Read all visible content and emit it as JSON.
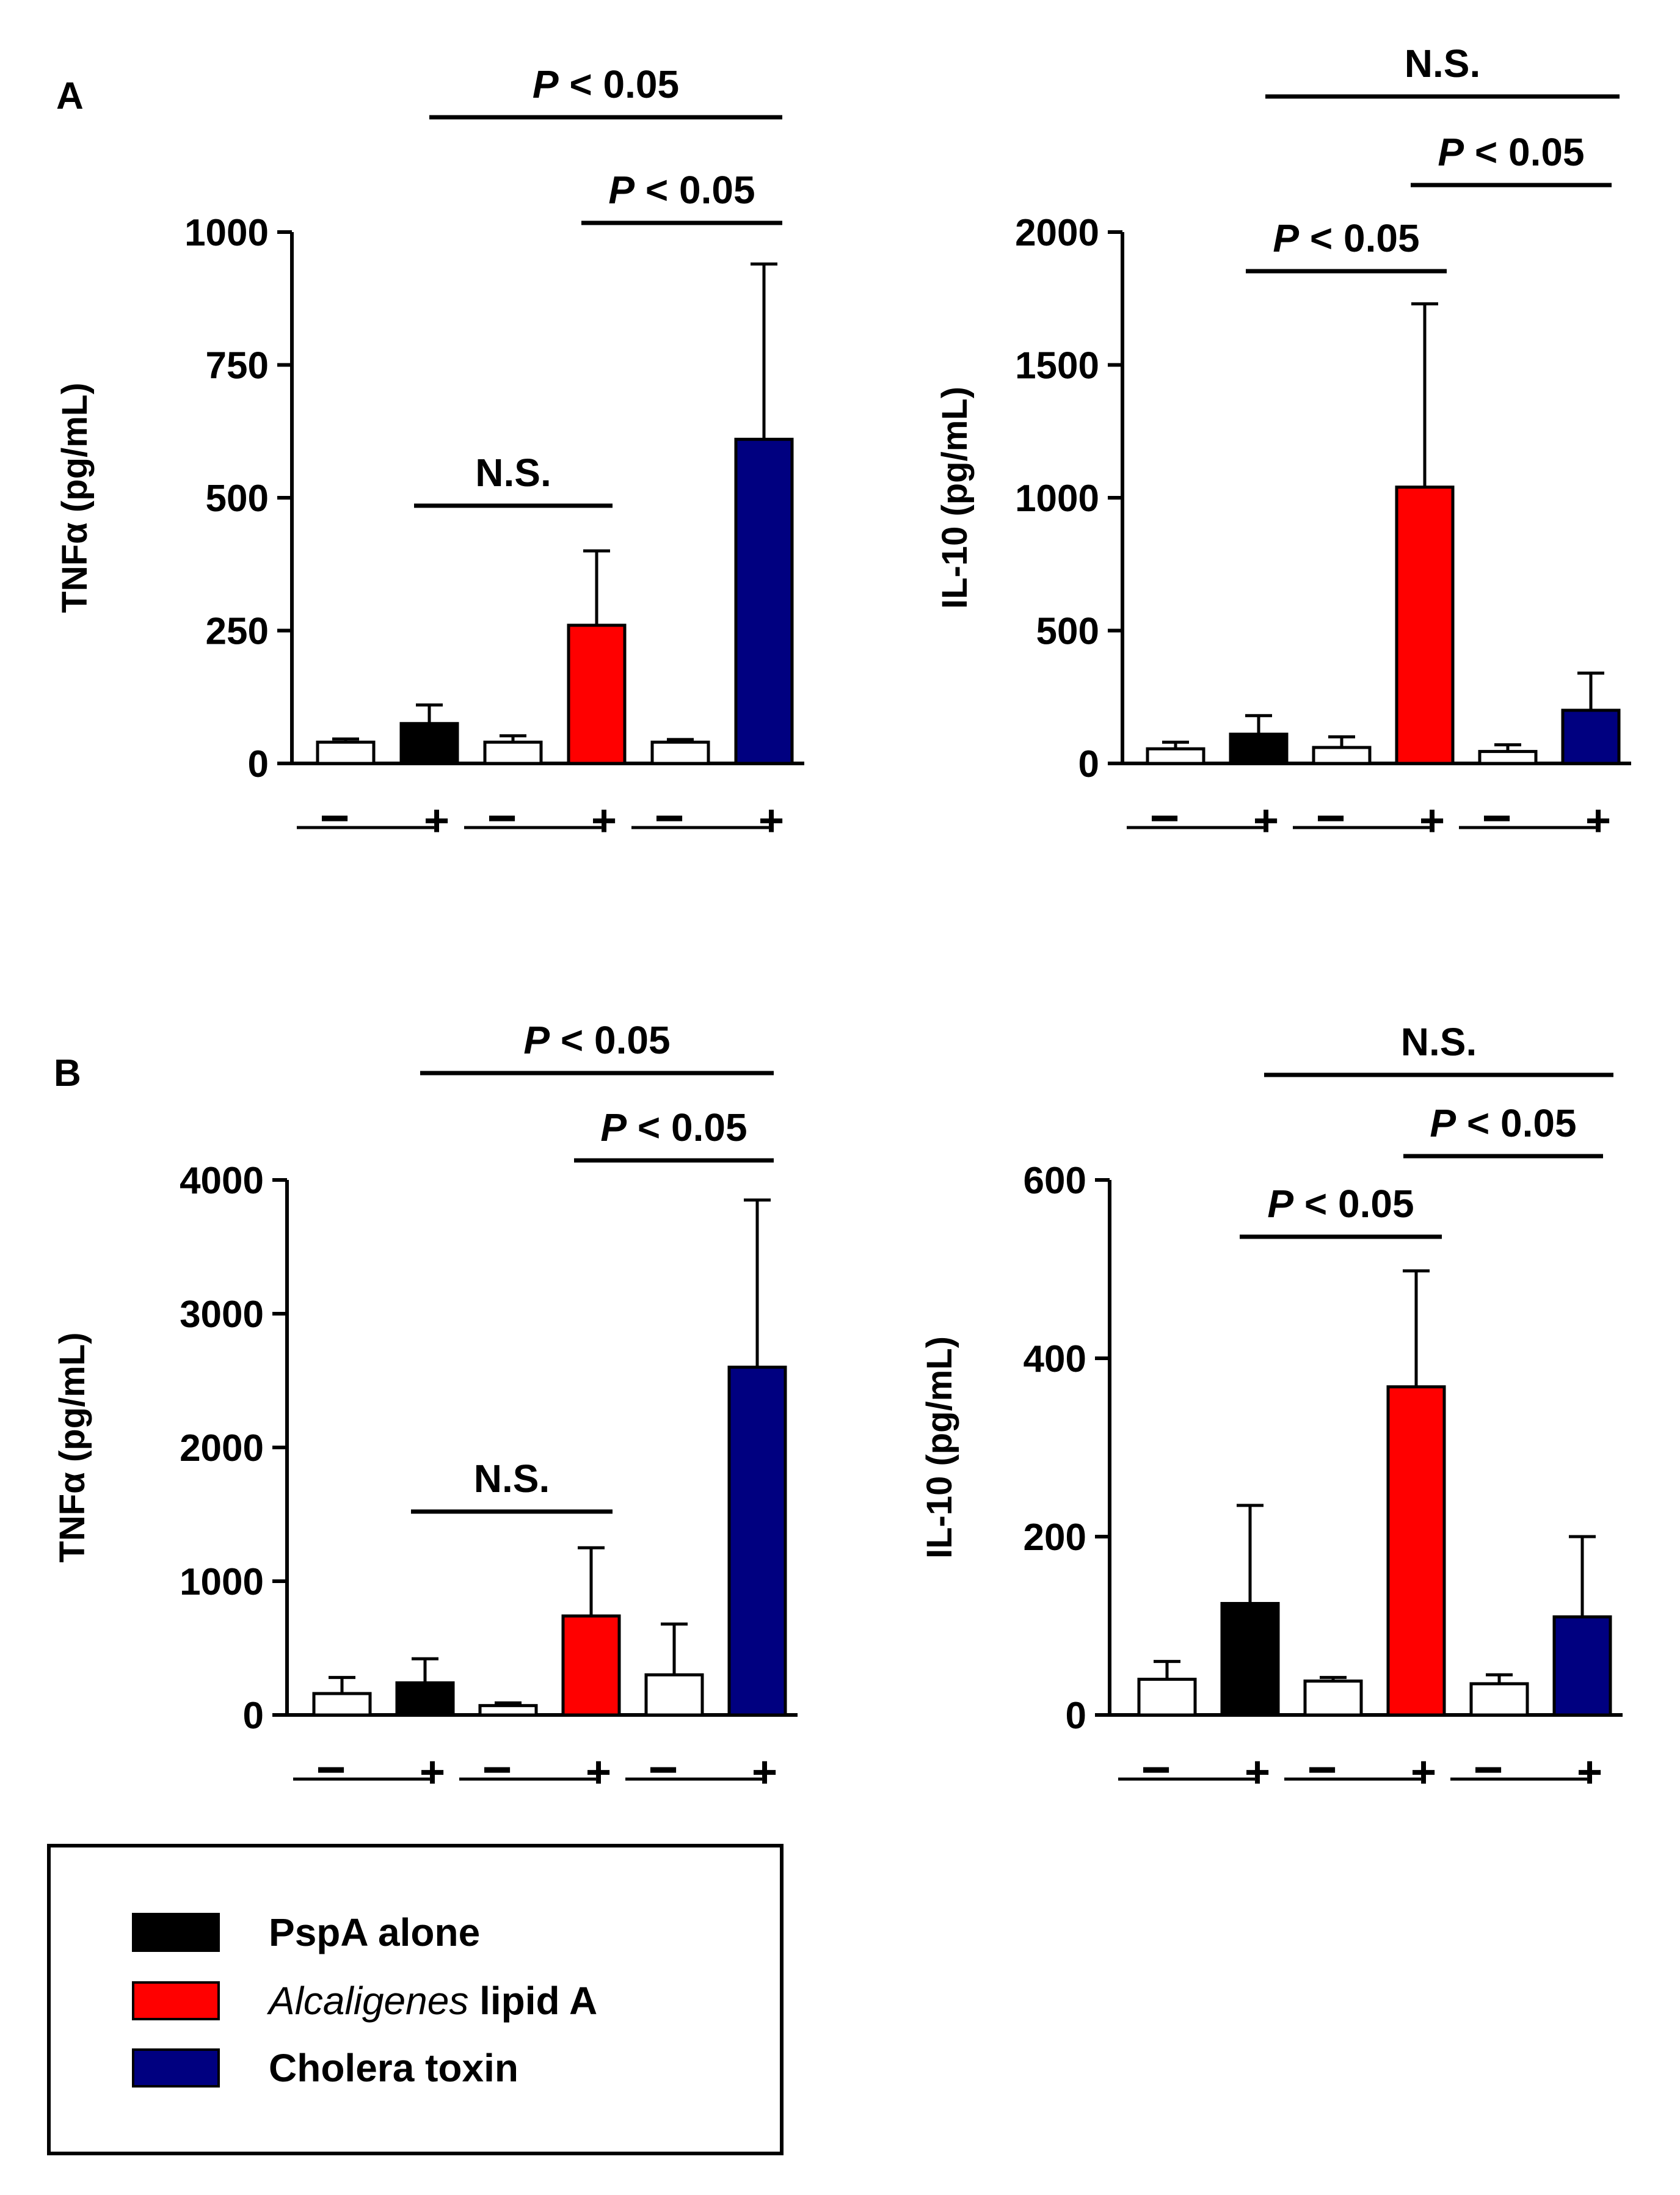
{
  "panels": {
    "A": {
      "label": "A"
    },
    "B": {
      "label": "B"
    }
  },
  "legend": {
    "items": [
      {
        "name": "PspA",
        "rest": "  alone",
        "italic": false,
        "color": "#000000"
      },
      {
        "name": "Alcaligenes",
        "rest": " lipid A",
        "italic": true,
        "color": "#ff0000"
      },
      {
        "name": "Cholera toxin",
        "rest": "",
        "italic": false,
        "color": "#000080"
      }
    ]
  },
  "colors": {
    "control": "#ffffff",
    "pspa_alone": "#000000",
    "alcaligenes": "#ff0000",
    "cholera": "#000080"
  },
  "chart_data": [
    {
      "id": "A-TNF",
      "panel": "A",
      "type": "bar",
      "ylabel": "TNFα (pg/mL)",
      "ylim": [
        0,
        1000
      ],
      "yticks": [
        0,
        250,
        500,
        750,
        1000
      ],
      "tick_labels": [
        "0",
        "250",
        "500",
        "750",
        "1000"
      ],
      "categories": [
        "−",
        "+",
        "−",
        "+",
        "−",
        "+"
      ],
      "values": [
        40,
        75,
        40,
        260,
        40,
        610
      ],
      "errors": [
        6,
        35,
        12,
        140,
        5,
        330
      ],
      "bar_colors": [
        "#ffffff",
        "#000000",
        "#ffffff",
        "#ff0000",
        "#ffffff",
        "#000080"
      ],
      "annotations": [
        {
          "text": "N.S.",
          "from": 1,
          "to": 3
        },
        {
          "text": "< 0.05",
          "p": true,
          "from": 3,
          "to": 5
        },
        {
          "text": "< 0.05",
          "p": true,
          "from": 1,
          "to": 5
        }
      ]
    },
    {
      "id": "A-IL10",
      "panel": "A",
      "type": "bar",
      "ylabel": "IL-10 (pg/mL)",
      "ylim": [
        0,
        2000
      ],
      "yticks": [
        0,
        500,
        1000,
        1500,
        2000
      ],
      "tick_labels": [
        "0",
        "500",
        "1000",
        "1500",
        "2000"
      ],
      "categories": [
        "−",
        "+",
        "−",
        "+",
        "−",
        "+"
      ],
      "values": [
        55,
        110,
        60,
        1040,
        45,
        200
      ],
      "errors": [
        25,
        70,
        40,
        690,
        25,
        140
      ],
      "bar_colors": [
        "#ffffff",
        "#000000",
        "#ffffff",
        "#ff0000",
        "#ffffff",
        "#000080"
      ],
      "annotations": [
        {
          "text": "< 0.05",
          "p": true,
          "from": 1,
          "to": 3
        },
        {
          "text": "< 0.05",
          "p": true,
          "from": 3,
          "to": 5
        },
        {
          "text": "N.S.",
          "from": 1,
          "to": 5
        }
      ]
    },
    {
      "id": "B-TNF",
      "panel": "B",
      "type": "bar",
      "ylabel": "TNFα (pg/mL)",
      "ylim": [
        0,
        4000
      ],
      "yticks": [
        0,
        1000,
        2000,
        3000,
        4000
      ],
      "tick_labels": [
        "0",
        "1000",
        "2000",
        "3000",
        "4000"
      ],
      "categories": [
        "−",
        "+",
        "−",
        "+",
        "−",
        "+"
      ],
      "values": [
        160,
        240,
        70,
        740,
        300,
        2600
      ],
      "errors": [
        120,
        180,
        20,
        510,
        380,
        1250
      ],
      "bar_colors": [
        "#ffffff",
        "#000000",
        "#ffffff",
        "#ff0000",
        "#ffffff",
        "#000080"
      ],
      "annotations": [
        {
          "text": "N.S.",
          "from": 1,
          "to": 3
        },
        {
          "text": "< 0.05",
          "p": true,
          "from": 3,
          "to": 5
        },
        {
          "text": "< 0.05",
          "p": true,
          "from": 1,
          "to": 5
        }
      ]
    },
    {
      "id": "B-IL10",
      "panel": "B",
      "type": "bar",
      "ylabel": "IL-10 (pg/mL)",
      "ylim": [
        0,
        600
      ],
      "yticks": [
        0,
        200,
        400,
        600
      ],
      "tick_labels": [
        "0",
        "200",
        "400",
        "600"
      ],
      "categories": [
        "−",
        "+",
        "−",
        "+",
        "−",
        "+"
      ],
      "values": [
        40,
        125,
        38,
        368,
        35,
        110
      ],
      "errors": [
        20,
        110,
        4,
        130,
        10,
        90
      ],
      "bar_colors": [
        "#ffffff",
        "#000000",
        "#ffffff",
        "#ff0000",
        "#ffffff",
        "#000080"
      ],
      "annotations": [
        {
          "text": "< 0.05",
          "p": true,
          "from": 1,
          "to": 3
        },
        {
          "text": "< 0.05",
          "p": true,
          "from": 3,
          "to": 5
        },
        {
          "text": "N.S.",
          "from": 1,
          "to": 5
        }
      ]
    }
  ]
}
